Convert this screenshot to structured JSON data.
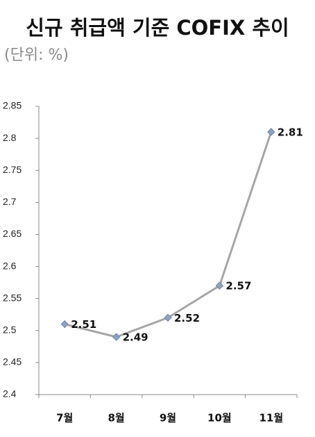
{
  "chart_data": {
    "type": "line",
    "title": "신규 취급액 기준 COFIX 추이",
    "subtitle": "(단위: %)",
    "categories": [
      "7월",
      "8월",
      "9월",
      "10월",
      "11월"
    ],
    "values": [
      2.51,
      2.49,
      2.52,
      2.57,
      2.81
    ],
    "color": "#a6a6a6",
    "marker_color": "#8ea3c3",
    "ylim": [
      2.4,
      2.85
    ],
    "yticks": [
      2.4,
      2.45,
      2.5,
      2.55,
      2.6,
      2.65,
      2.7,
      2.75,
      2.8,
      2.85
    ],
    "grid": false
  }
}
